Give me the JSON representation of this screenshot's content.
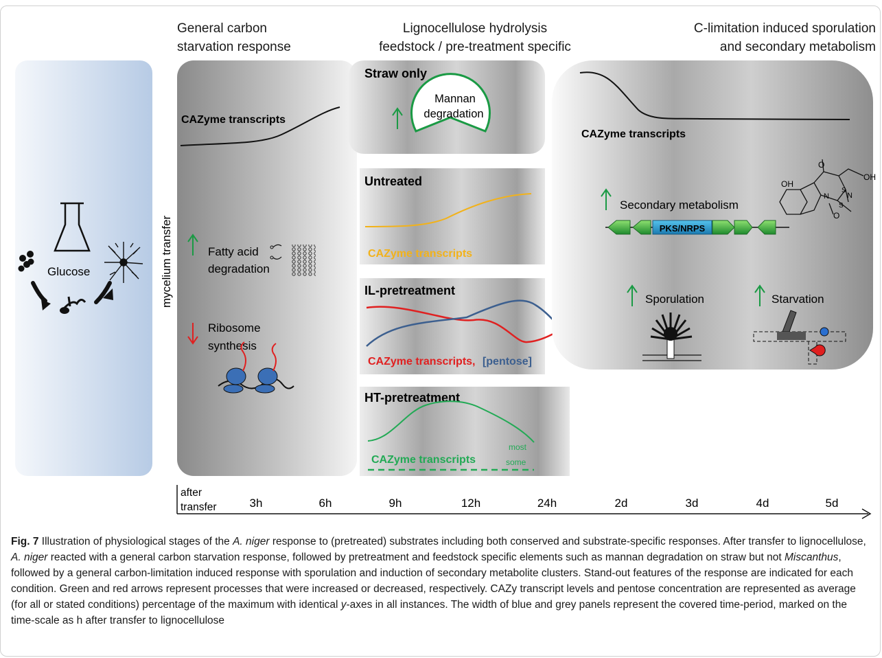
{
  "headers": {
    "general_line1": "General carbon",
    "general_line2": "starvation response",
    "ligno_line1": "Lignocellulose hydrolysis",
    "ligno_line2": "feedstock / pre-treatment specific",
    "climit_line1": "C-limitation induced sporulation",
    "climit_line2": "and secondary metabolism"
  },
  "glucose_panel": {
    "label": "Glucose"
  },
  "transfer_label": "mycelium transfer",
  "starvation_panel": {
    "cazyme_label": "CAZyme transcripts",
    "fatty_line1": "Fatty acid",
    "fatty_line2": "degradation",
    "ribosome_line1": "Ribosome",
    "ribosome_line2": "synthesis"
  },
  "straw_panel": {
    "title": "Straw only",
    "mannan_line1": "Mannan",
    "mannan_line2": "degradation"
  },
  "untreated_panel": {
    "title": "Untreated",
    "cazyme_label": "CAZyme transcripts"
  },
  "il_panel": {
    "title": "IL-pretreatment",
    "cazyme_label": "CAZyme transcripts,",
    "pentose_label": "[pentose]"
  },
  "ht_panel": {
    "title": "HT-pretreatment",
    "cazyme_label": "CAZyme transcripts",
    "most_label": "most",
    "some_label": "some"
  },
  "climit_panel": {
    "cazyme_label": "CAZyme transcripts",
    "secondary_label": "Secondary metabolism",
    "pks_label": "PKS/NRPS",
    "sporulation_label": "Sporulation",
    "starvation_label": "Starvation",
    "mol_oh1": "OH",
    "mol_oh2": "OH",
    "mol_o1": "O",
    "mol_o2": "O",
    "mol_n1": "N",
    "mol_n2": "N",
    "mol_s1": "S",
    "mol_s2": "S"
  },
  "timeline": {
    "label_line1": "after",
    "label_line2": "transfer",
    "ticks": [
      "3h",
      "6h",
      "9h",
      "12h",
      "24h",
      "2d",
      "3d",
      "4d",
      "5d"
    ]
  },
  "caption": {
    "fig": "Fig. 7",
    "t1": "  Illustration of physiological stages of the ",
    "sp1": "A. niger",
    "t2": " response to (pretreated) substrates including both conserved and substrate-specific responses. After transfer to lignocellulose, ",
    "sp2": "A. niger",
    "t3": " reacted with a general carbon starvation response, followed by pretreatment and feedstock specific elements such as mannan degradation on straw but not ",
    "sp3": "Miscanthus",
    "t4": ", followed by a general carbon-limitation induced response with sporulation and induction of secondary metabolite clusters. Stand-out features of the response are indicated for each condition. Green and red arrows represent processes that were increased or decreased, respectively. CAZy transcript levels and pentose concentration are represented as average (for all or stated conditions) percentage of the maximum with identical ",
    "yax": "y",
    "t5": "-axes in all instances. The width of blue and grey panels represent the covered time-period, marked on the time-scale as h after transfer to lignocellulose"
  },
  "colors": {
    "up_arrow": "#1a9a44",
    "down_arrow": "#e02020",
    "untreated_curve": "#f2b21a",
    "il_cazyme": "#e02020",
    "il_pentose": "#3c5f8f",
    "ht_curve": "#22aa55",
    "glucose_panel": "#b8cce6"
  }
}
